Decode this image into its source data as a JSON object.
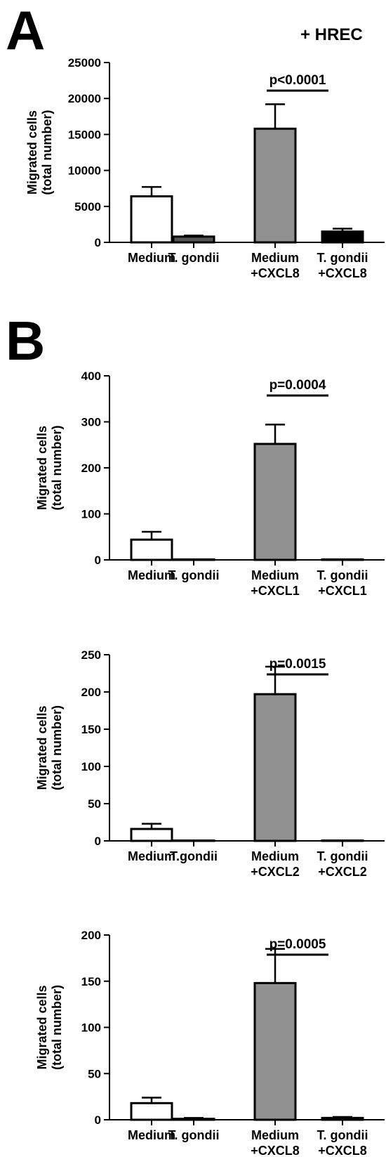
{
  "panel_a": {
    "letter": "A",
    "condition": "+ HREC"
  },
  "panel_b": {
    "letter": "B"
  },
  "chart_data": [
    {
      "type": "bar",
      "panel": "A",
      "ylabel": [
        "Migrated cells",
        "(total number)"
      ],
      "ylim": [
        0,
        25000
      ],
      "yticks": [
        0,
        5000,
        10000,
        15000,
        20000,
        25000
      ],
      "categories": [
        [
          "Medium"
        ],
        [
          "T. gondii"
        ],
        [
          "Medium",
          "+CXCL8"
        ],
        [
          "T. gondii",
          "+CXCL8"
        ]
      ],
      "values": [
        6400,
        800,
        15800,
        1500
      ],
      "errors": [
        1300,
        150,
        3400,
        400
      ],
      "fills": [
        "#ffffff",
        "#555555",
        "#909090",
        "#000000"
      ],
      "significance": {
        "from": 2,
        "to": 3,
        "label": "p<0.0001"
      }
    },
    {
      "type": "bar",
      "panel": "B",
      "ylabel": [
        "Migrated cells",
        "(total number)"
      ],
      "ylim": [
        0,
        400
      ],
      "yticks": [
        0,
        100,
        200,
        300,
        400
      ],
      "categories": [
        [
          "Medium"
        ],
        [
          "T. gondii"
        ],
        [
          "Medium",
          "+CXCL1"
        ],
        [
          "T. gondii",
          "+CXCL1"
        ]
      ],
      "values": [
        44,
        1,
        252,
        1
      ],
      "errors": [
        17,
        0,
        42,
        0
      ],
      "fills": [
        "#ffffff",
        "#555555",
        "#909090",
        "#000000"
      ],
      "significance": {
        "from": 2,
        "to": 3,
        "label": "p=0.0004"
      }
    },
    {
      "type": "bar",
      "panel": "B",
      "ylabel": [
        "Migrated cells",
        "(total number)"
      ],
      "ylim": [
        0,
        250
      ],
      "yticks": [
        0,
        50,
        100,
        150,
        200,
        250
      ],
      "categories": [
        [
          "Medium"
        ],
        [
          "T.gondii"
        ],
        [
          "Medium",
          "+CXCL2"
        ],
        [
          "T. gondii",
          "+CXCL2"
        ]
      ],
      "values": [
        16,
        0,
        197,
        0.5
      ],
      "errors": [
        7,
        0,
        37,
        0
      ],
      "fills": [
        "#ffffff",
        "#555555",
        "#909090",
        "#000000"
      ],
      "significance": {
        "from": 2,
        "to": 3,
        "label": "p=0.0015"
      }
    },
    {
      "type": "bar",
      "panel": "B",
      "ylabel": [
        "Migrated cells",
        "(total number)"
      ],
      "ylim": [
        0,
        200
      ],
      "yticks": [
        0,
        50,
        100,
        150,
        200
      ],
      "categories": [
        [
          "Medium"
        ],
        [
          "T. gondii"
        ],
        [
          "Medium",
          "+CXCL8"
        ],
        [
          "T. gondii",
          "+CXCL8"
        ]
      ],
      "values": [
        18,
        1,
        148,
        2
      ],
      "errors": [
        6,
        1,
        37,
        1
      ],
      "fills": [
        "#ffffff",
        "#555555",
        "#909090",
        "#000000"
      ],
      "significance": {
        "from": 2,
        "to": 3,
        "label": "p=0.0005"
      }
    }
  ]
}
